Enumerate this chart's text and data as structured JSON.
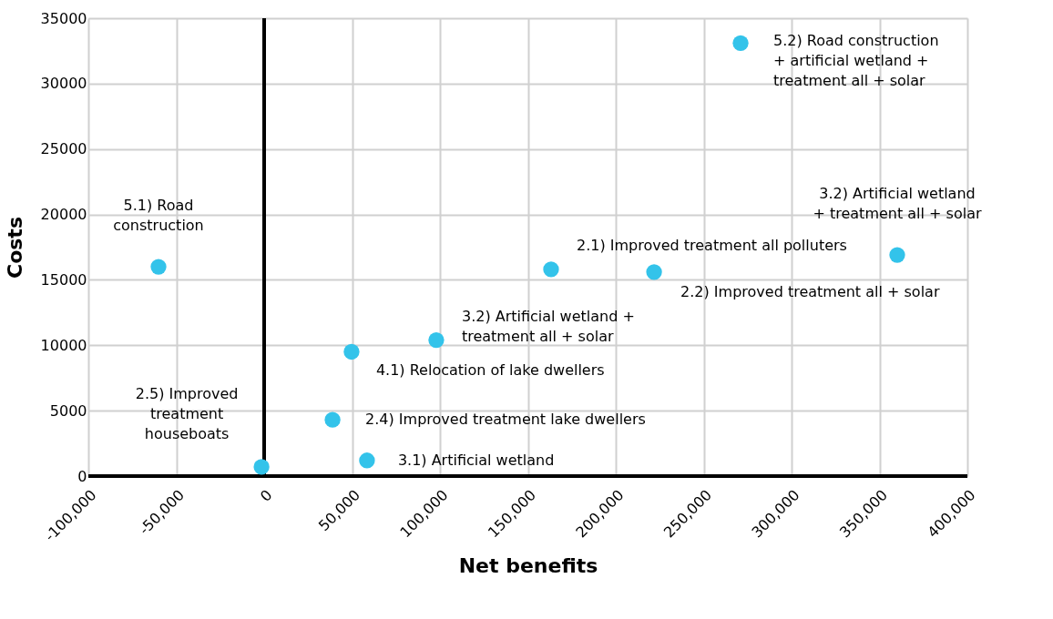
{
  "chart_data": {
    "type": "scatter",
    "xlabel": "Net benefits",
    "ylabel": "Costs",
    "x": [
      271000,
      -60100,
      360100,
      163200,
      221800,
      97900,
      49700,
      38900,
      58500,
      -1500
    ],
    "series": [
      {
        "color": "#33c3ea",
        "values": [
          33100,
          16000,
          16900,
          15800,
          15600,
          10400,
          9500,
          4300,
          1200,
          700
        ]
      }
    ],
    "xlim": [
      -100000,
      400000
    ],
    "xticks": [
      {
        "value": -100000,
        "label": "-100,000"
      },
      {
        "value": -50000,
        "label": "-50,000"
      },
      0,
      {
        "value": 50000,
        "label": "50,000"
      },
      {
        "value": 100000,
        "label": "100,000"
      },
      {
        "value": 150000,
        "label": "150,000"
      },
      {
        "value": 200000,
        "label": "200,000"
      },
      {
        "value": 250000,
        "label": "250,000"
      },
      {
        "value": 300000,
        "label": "300,000"
      },
      {
        "value": 350000,
        "label": "350,000"
      },
      {
        "value": 400000,
        "label": "400,000"
      }
    ],
    "ylim": [
      0,
      35000
    ],
    "yticks": [
      0,
      5000,
      10000,
      15000,
      20000,
      25000,
      30000,
      35000
    ],
    "ref_lines": [
      {
        "axis": "x",
        "value": 0,
        "color": "#000000"
      },
      {
        "axis": "y",
        "value": 0,
        "color": "#000000"
      }
    ],
    "annotations": [
      {
        "text": "5.2) Road construction\n+ artificial wetland +\ntreatment all + solar",
        "x": 271000,
        "y": 33100
      },
      {
        "text": "5.1) Road\nconstruction",
        "x": -60100,
        "y": 16000
      },
      {
        "text": "3.2) Artificial wetland\n+ treatment all + solar",
        "x": 360100,
        "y": 16900
      },
      {
        "text": "2.1) Improved treatment all polluters",
        "x": 163200,
        "y": 15800
      },
      {
        "text": "2.2) Improved treatment all + solar",
        "x": 221800,
        "y": 15600
      },
      {
        "text": "3.2) Artificial wetland +\ntreatment all + solar",
        "x": 97900,
        "y": 10400
      },
      {
        "text": "4.1) Relocation of lake dwellers",
        "x": 49700,
        "y": 9500
      },
      {
        "text": "2.4) Improved treatment lake dwellers",
        "x": 38900,
        "y": 4300
      },
      {
        "text": "3.1) Artificial wetland",
        "x": 58500,
        "y": 1200
      },
      {
        "text": "2.5) Improved\ntreatment\nhouseboats",
        "x": -1500,
        "y": 700
      }
    ],
    "grid": true,
    "marker": "circle"
  }
}
